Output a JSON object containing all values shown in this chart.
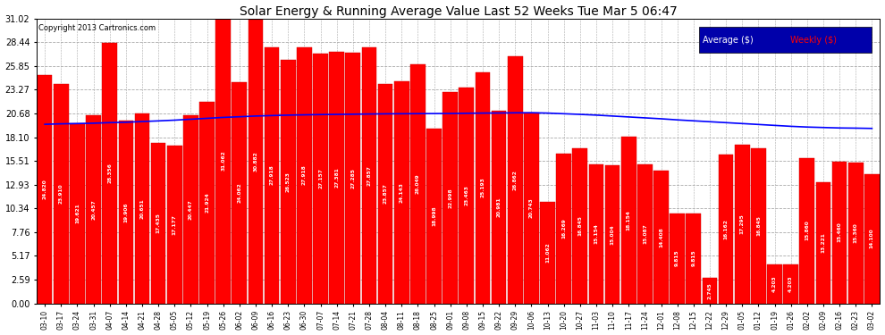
{
  "title": "Solar Energy & Running Average Value Last 52 Weeks Tue Mar 5 06:47",
  "copyright": "Copyright 2013 Cartronics.com",
  "bar_color": "#FF0000",
  "avg_line_color": "#0000FF",
  "background_color": "#FFFFFF",
  "plot_bg_color": "#FFFFFF",
  "grid_color": "#AAAAAA",
  "yticks": [
    0.0,
    2.59,
    5.17,
    7.76,
    10.34,
    12.93,
    15.51,
    18.1,
    20.68,
    23.27,
    25.85,
    28.44,
    31.02
  ],
  "categories": [
    "03-10",
    "03-17",
    "03-24",
    "03-31",
    "04-07",
    "04-14",
    "04-21",
    "04-28",
    "05-05",
    "05-12",
    "05-19",
    "05-26",
    "06-02",
    "06-09",
    "06-16",
    "06-23",
    "06-30",
    "07-07",
    "07-14",
    "07-21",
    "07-28",
    "08-04",
    "08-11",
    "08-18",
    "08-25",
    "09-01",
    "09-08",
    "09-15",
    "09-22",
    "09-29",
    "10-06",
    "10-13",
    "10-20",
    "10-27",
    "11-03",
    "11-10",
    "11-17",
    "11-24",
    "12-01",
    "12-08",
    "12-15",
    "12-22",
    "12-29",
    "01-05",
    "01-12",
    "01-19",
    "01-26",
    "02-02",
    "02-09",
    "02-16",
    "02-23",
    "03-02"
  ],
  "weekly_values": [
    24.82,
    23.91,
    19.621,
    20.457,
    28.356,
    19.906,
    20.651,
    17.435,
    17.177,
    20.447,
    21.924,
    31.062,
    24.062,
    30.882,
    27.918,
    26.523,
    27.918,
    27.157,
    27.381,
    27.285,
    27.857,
    23.857,
    24.143,
    26.049,
    18.998,
    22.998,
    23.463,
    25.193,
    20.981,
    26.862,
    20.743,
    11.062,
    16.269,
    16.845,
    15.154,
    15.004,
    18.154,
    15.087,
    14.408,
    9.815,
    9.815,
    2.745,
    16.162,
    17.295,
    16.845,
    4.203,
    4.203,
    15.86,
    13.221,
    15.46,
    15.36,
    14.1
  ],
  "avg_values": [
    19.5,
    19.55,
    19.58,
    19.62,
    19.68,
    19.72,
    19.8,
    19.87,
    19.95,
    20.05,
    20.15,
    20.25,
    20.32,
    20.4,
    20.45,
    20.5,
    20.53,
    20.56,
    20.58,
    20.6,
    20.62,
    20.64,
    20.65,
    20.66,
    20.67,
    20.68,
    20.7,
    20.72,
    20.73,
    20.75,
    20.76,
    20.72,
    20.65,
    20.58,
    20.5,
    20.4,
    20.3,
    20.2,
    20.1,
    19.98,
    19.88,
    19.78,
    19.68,
    19.58,
    19.48,
    19.38,
    19.28,
    19.2,
    19.15,
    19.1,
    19.08,
    19.05
  ],
  "legend_bg_color": "#0000AA",
  "legend_avg_text_color": "#FFFFFF",
  "legend_weekly_text_color": "#FF0000"
}
